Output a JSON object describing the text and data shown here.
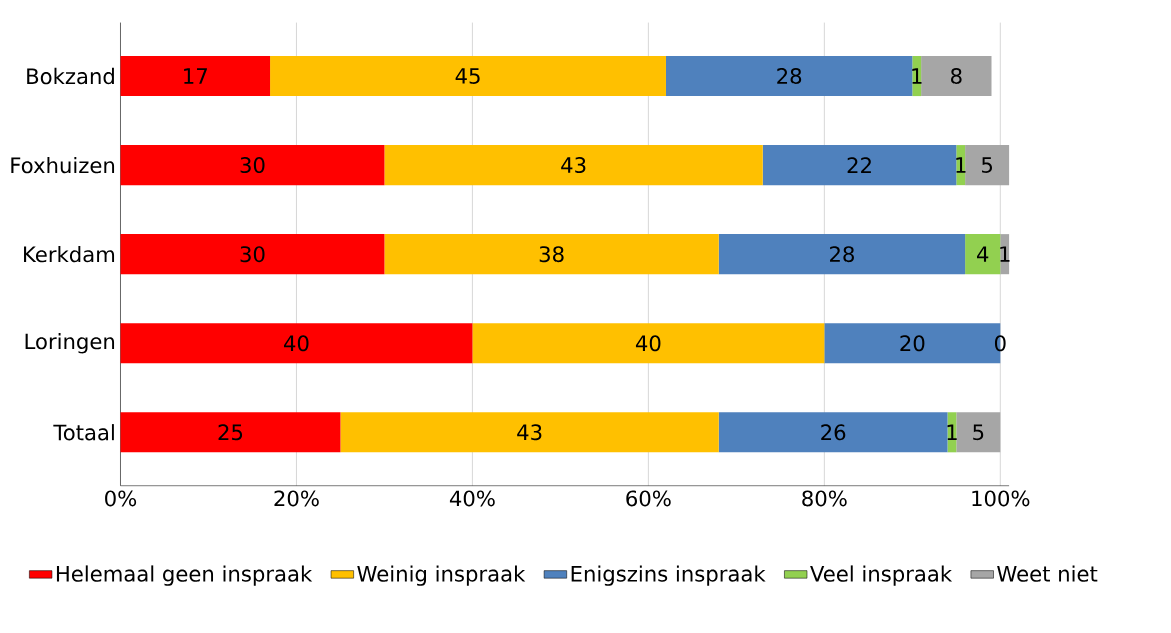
{
  "chart_data": {
    "type": "bar",
    "orientation": "horizontal",
    "stacked": true,
    "categories": [
      "Bokzand",
      "Foxhuizen",
      "Kerkdam",
      "Loringen",
      "Totaal"
    ],
    "series": [
      {
        "name": "Helemaal geen inspraak",
        "color": "#ff0000",
        "values": [
          17,
          30,
          30,
          40,
          25
        ],
        "value_labels": [
          "17",
          "30",
          "30",
          "40",
          "25"
        ]
      },
      {
        "name": "Weinig inspraak",
        "color": "#ffc000",
        "values": [
          45,
          43,
          38,
          40,
          43
        ],
        "value_labels": [
          "45",
          "43",
          "38",
          "40",
          "43"
        ]
      },
      {
        "name": "Enigszins inspraak",
        "color": "#4f81bd",
        "values": [
          28,
          22,
          28,
          20,
          26
        ],
        "value_labels": [
          "28",
          "22",
          "28",
          "20",
          "26"
        ]
      },
      {
        "name": "Veel inspraak",
        "color": "#92d050",
        "values": [
          1,
          1,
          4,
          0,
          1
        ],
        "value_labels": [
          "1",
          "1",
          "4",
          "0",
          "1"
        ]
      },
      {
        "name": "Weet niet",
        "color": "#a6a6a6",
        "values": [
          8,
          5,
          1,
          0,
          5
        ],
        "value_labels": [
          "8",
          "5",
          "1",
          null,
          "5"
        ]
      }
    ],
    "xlim": [
      0,
      101
    ],
    "xticks": [
      {
        "value": 0,
        "label": "0%"
      },
      {
        "value": 20,
        "label": "20%"
      },
      {
        "value": 40,
        "label": "40%"
      },
      {
        "value": 60,
        "label": "60%"
      },
      {
        "value": 80,
        "label": "80%"
      },
      {
        "value": 100,
        "label": "100%"
      }
    ],
    "grid": "x",
    "legend": "bottom"
  }
}
